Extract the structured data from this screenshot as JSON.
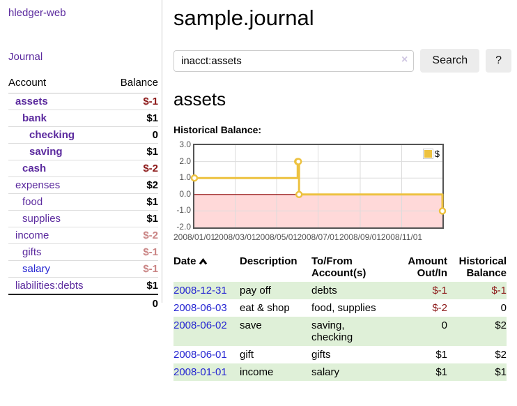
{
  "colors": {
    "purple_link": "#5b2a9e",
    "blue_link": "#2525d2",
    "negative_strong": "#8b1717",
    "negative_soft": "#c98383",
    "row_stripe": "#dff0d8",
    "chart_series": "#edc240",
    "chart_negative_fill": "#ffd9d9",
    "chart_zero_line": "#8b0000",
    "chart_grid": "#dcdcdc"
  },
  "sidebar": {
    "brand": "hledger-web",
    "nav_journal": "Journal",
    "table": {
      "col_account": "Account",
      "col_balance": "Balance"
    },
    "accounts": [
      {
        "label": "assets",
        "depth": 1,
        "bold": true,
        "link_color": "purple",
        "balance": "$-1",
        "balance_color": "darkred"
      },
      {
        "label": "bank",
        "depth": 2,
        "bold": true,
        "link_color": "purple",
        "balance": "$1",
        "balance_color": "black"
      },
      {
        "label": "checking",
        "depth": 3,
        "bold": true,
        "link_color": "purple",
        "balance": "0",
        "balance_color": "black"
      },
      {
        "label": "saving",
        "depth": 3,
        "bold": true,
        "link_color": "purple",
        "balance": "$1",
        "balance_color": "black"
      },
      {
        "label": "cash",
        "depth": 2,
        "bold": true,
        "link_color": "purple",
        "balance": "$-2",
        "balance_color": "darkred"
      },
      {
        "label": "expenses",
        "depth": 1,
        "bold": false,
        "link_color": "purple",
        "balance": "$2",
        "balance_color": "black"
      },
      {
        "label": "food",
        "depth": 2,
        "bold": false,
        "link_color": "purple",
        "balance": "$1",
        "balance_color": "black"
      },
      {
        "label": "supplies",
        "depth": 2,
        "bold": false,
        "link_color": "purple",
        "balance": "$1",
        "balance_color": "black"
      },
      {
        "label": "income",
        "depth": 1,
        "bold": false,
        "link_color": "purple",
        "balance": "$-2",
        "balance_color": "rose"
      },
      {
        "label": "gifts",
        "depth": 2,
        "bold": false,
        "link_color": "purple",
        "balance": "$-1",
        "balance_color": "rose"
      },
      {
        "label": "salary",
        "depth": 2,
        "bold": false,
        "link_color": "blue",
        "balance": "$-1",
        "balance_color": "rose"
      },
      {
        "label": "liabilities:debts",
        "depth": 1,
        "bold": false,
        "link_color": "purple",
        "balance": "$1",
        "balance_color": "black"
      }
    ],
    "total": "0"
  },
  "main": {
    "title": "sample.journal",
    "search": {
      "value": "inacct:assets",
      "clear_icon": "×",
      "button": "Search",
      "help": "?"
    },
    "account_heading": "assets",
    "chart_label": "Historical Balance:",
    "register": {
      "headers": {
        "date": "Date",
        "description": "Description",
        "tofrom_line1": "To/From",
        "tofrom_line2": "Account(s)",
        "amount_line1": "Amount",
        "amount_line2": "Out/In",
        "balance_line1": "Historical",
        "balance_line2": "Balance"
      },
      "rows": [
        {
          "date": "2008-12-31",
          "description": "pay off",
          "accounts": "debts",
          "amount": "$-1",
          "amount_negative": true,
          "balance": "$-1",
          "balance_negative": true
        },
        {
          "date": "2008-06-03",
          "description": "eat & shop",
          "accounts": "food, supplies",
          "amount": "$-2",
          "amount_negative": true,
          "balance": "0",
          "balance_negative": false
        },
        {
          "date": "2008-06-02",
          "description": "save",
          "accounts": "saving, checking",
          "amount": "0",
          "amount_negative": false,
          "balance": "$2",
          "balance_negative": false
        },
        {
          "date": "2008-06-01",
          "description": "gift",
          "accounts": "gifts",
          "amount": "$1",
          "amount_negative": false,
          "balance": "$2",
          "balance_negative": false
        },
        {
          "date": "2008-01-01",
          "description": "income",
          "accounts": "salary",
          "amount": "$1",
          "amount_negative": false,
          "balance": "$1",
          "balance_negative": false
        }
      ]
    }
  },
  "chart_data": {
    "type": "line",
    "title": "Historical Balance",
    "step": true,
    "grid": true,
    "legend_position": "top-right",
    "xlim": [
      "2008-01-01",
      "2008-12-31"
    ],
    "ylim": [
      -2,
      3
    ],
    "x_ticks": [
      "2008/01/01",
      "2008/03/01",
      "2008/05/01",
      "2008/07/01",
      "2008/09/01",
      "2008/11/01"
    ],
    "y_ticks": [
      "3.0",
      "2.0",
      "1.0",
      "0.0",
      "-1.0",
      "-2.0"
    ],
    "series": [
      {
        "name": "$",
        "color": "#edc240",
        "points": [
          {
            "x": "2008-01-01",
            "y": 1
          },
          {
            "x": "2008-06-01",
            "y": 2
          },
          {
            "x": "2008-06-02",
            "y": 2
          },
          {
            "x": "2008-06-03",
            "y": 0
          },
          {
            "x": "2008-12-31",
            "y": -1
          }
        ]
      }
    ],
    "negative_region_fill": "#ffd9d9",
    "zero_line_color": "#8b0000"
  }
}
